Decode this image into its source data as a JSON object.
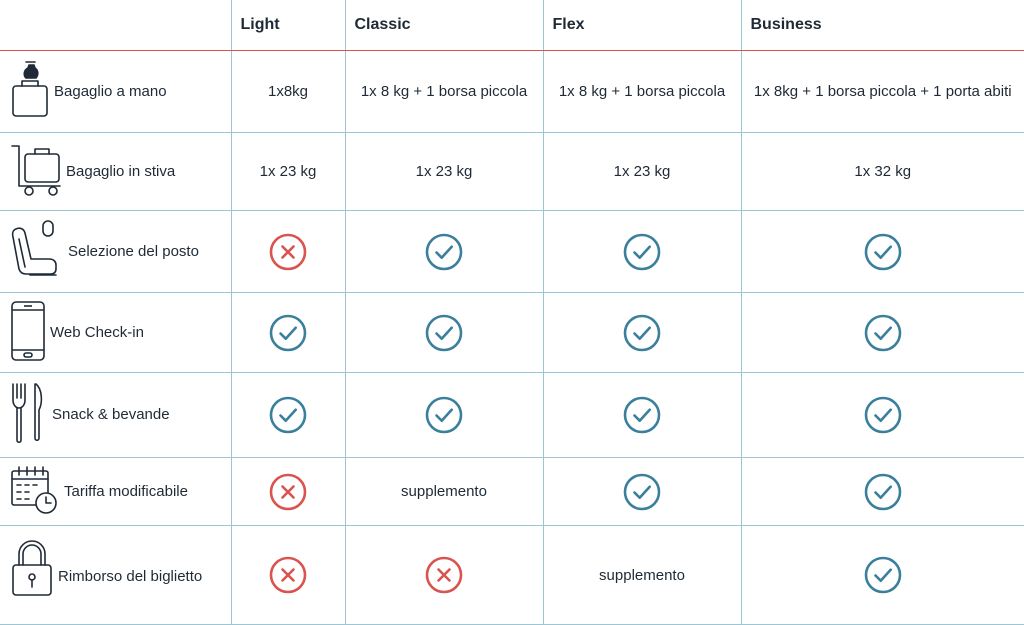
{
  "header": {
    "corner": "",
    "columns": [
      "Light",
      "Classic",
      "Flex",
      "Business"
    ]
  },
  "rows": [
    {
      "icon": "handbag-icon",
      "label": "Bagaglio a mano",
      "cells": [
        {
          "type": "text",
          "value": "1x8kg"
        },
        {
          "type": "text",
          "value": "1x 8 kg + 1 borsa piccola"
        },
        {
          "type": "text",
          "value": "1x 8 kg + 1 borsa piccola"
        },
        {
          "type": "text",
          "value": "1x 8kg + 1 borsa piccola + 1 porta abiti"
        }
      ]
    },
    {
      "icon": "luggage-cart-icon",
      "label": "Bagaglio in stiva",
      "cells": [
        {
          "type": "text",
          "value": "1x 23 kg"
        },
        {
          "type": "text",
          "value": "1x 23 kg"
        },
        {
          "type": "text",
          "value": "1x 23 kg"
        },
        {
          "type": "text",
          "value": "1x 32 kg"
        }
      ]
    },
    {
      "icon": "seat-icon",
      "label": "Selezione del posto",
      "cells": [
        {
          "type": "cross"
        },
        {
          "type": "check"
        },
        {
          "type": "check"
        },
        {
          "type": "check"
        }
      ]
    },
    {
      "icon": "smartphone-icon",
      "label": "Web Check-in",
      "cells": [
        {
          "type": "check"
        },
        {
          "type": "check"
        },
        {
          "type": "check"
        },
        {
          "type": "check"
        }
      ]
    },
    {
      "icon": "fork-knife-icon",
      "label": "Snack & bevande",
      "cells": [
        {
          "type": "check"
        },
        {
          "type": "check"
        },
        {
          "type": "check"
        },
        {
          "type": "check"
        }
      ]
    },
    {
      "icon": "calendar-clock-icon",
      "label": "Tariffa modificabile",
      "cells": [
        {
          "type": "cross"
        },
        {
          "type": "text",
          "value": "supplemento"
        },
        {
          "type": "check"
        },
        {
          "type": "check"
        }
      ]
    },
    {
      "icon": "padlock-icon",
      "label": "Rimborso del biglietto",
      "cells": [
        {
          "type": "cross"
        },
        {
          "type": "cross"
        },
        {
          "type": "text",
          "value": "supplemento"
        },
        {
          "type": "check"
        }
      ]
    }
  ],
  "colors": {
    "check": "#3a7f9c",
    "cross": "#d9534f",
    "grid": "#9cc6d6",
    "header_rule": "#d9534f",
    "text": "#1f2a36"
  }
}
